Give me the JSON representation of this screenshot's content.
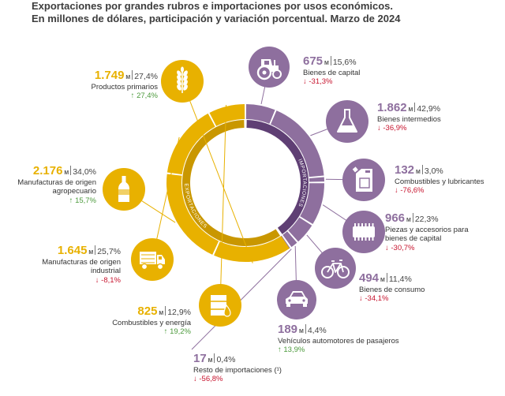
{
  "title_line1": "Exportaciones por grandes rubros e importaciones por usos económicos.",
  "title_line2": "En millones de dólares, participación y variación porcentual. Marzo de 2024",
  "ring_label_exp": "EXPORTACIONES",
  "ring_label_imp": "IMPORTACIONES",
  "unit": "M",
  "colors": {
    "exports": "#e8b100",
    "imports": "#8e6f9e",
    "up": "#4c9a3c",
    "down": "#c7142e"
  },
  "chart_data": {
    "type": "pie",
    "unit": "millones de dólares",
    "groups": [
      {
        "name": "EXPORTACIONES",
        "color": "#e8b100",
        "items": [
          {
            "label": "Productos primarios",
            "value": 1749,
            "value_text": "1.749",
            "share": "27,4%",
            "change": "27,4%",
            "direction": "up",
            "icon": "wheat-icon"
          },
          {
            "label": "Manufacturas de origen agropecuario",
            "value": 2176,
            "value_text": "2.176",
            "share": "34,0%",
            "change": "15,7%",
            "direction": "up",
            "icon": "bottle-icon"
          },
          {
            "label": "Manufacturas de origen industrial",
            "value": 1645,
            "value_text": "1.645",
            "share": "25,7%",
            "change": "-8,1%",
            "direction": "down",
            "icon": "truck-icon"
          },
          {
            "label": "Combustibles y energía",
            "value": 825,
            "value_text": "825",
            "share": "12,9%",
            "change": "19,2%",
            "direction": "up",
            "icon": "barrel-icon"
          }
        ]
      },
      {
        "name": "IMPORTACIONES",
        "color": "#8e6f9e",
        "items": [
          {
            "label": "Bienes de capital",
            "value": 675,
            "value_text": "675",
            "share": "15,6%",
            "change": "-31,3%",
            "direction": "down",
            "icon": "tractor-icon"
          },
          {
            "label": "Bienes intermedios",
            "value": 1862,
            "value_text": "1.862",
            "share": "42,9%",
            "change": "-36,9%",
            "direction": "down",
            "icon": "flask-icon"
          },
          {
            "label": "Combustibles y lubricantes",
            "value": 132,
            "value_text": "132",
            "share": "3,0%",
            "change": "-76,6%",
            "direction": "down",
            "icon": "jerrycan-icon"
          },
          {
            "label": "Piezas y accesorios para bienes de capital",
            "value": 966,
            "value_text": "966",
            "share": "22,3%",
            "change": "-30,7%",
            "direction": "down",
            "icon": "chip-icon"
          },
          {
            "label": "Bienes de consumo",
            "value": 494,
            "value_text": "494",
            "share": "11,4%",
            "change": "-34,1%",
            "direction": "down",
            "icon": "bicycle-icon"
          },
          {
            "label": "Vehículos automotores de pasajeros",
            "value": 189,
            "value_text": "189",
            "share": "4,4%",
            "change": "13,9%",
            "direction": "up",
            "icon": "car-icon"
          },
          {
            "label": "Resto de importaciones (¹)",
            "value": 17,
            "value_text": "17",
            "share": "0,4%",
            "change": "-56,8%",
            "direction": "down",
            "icon": ""
          }
        ]
      }
    ]
  }
}
